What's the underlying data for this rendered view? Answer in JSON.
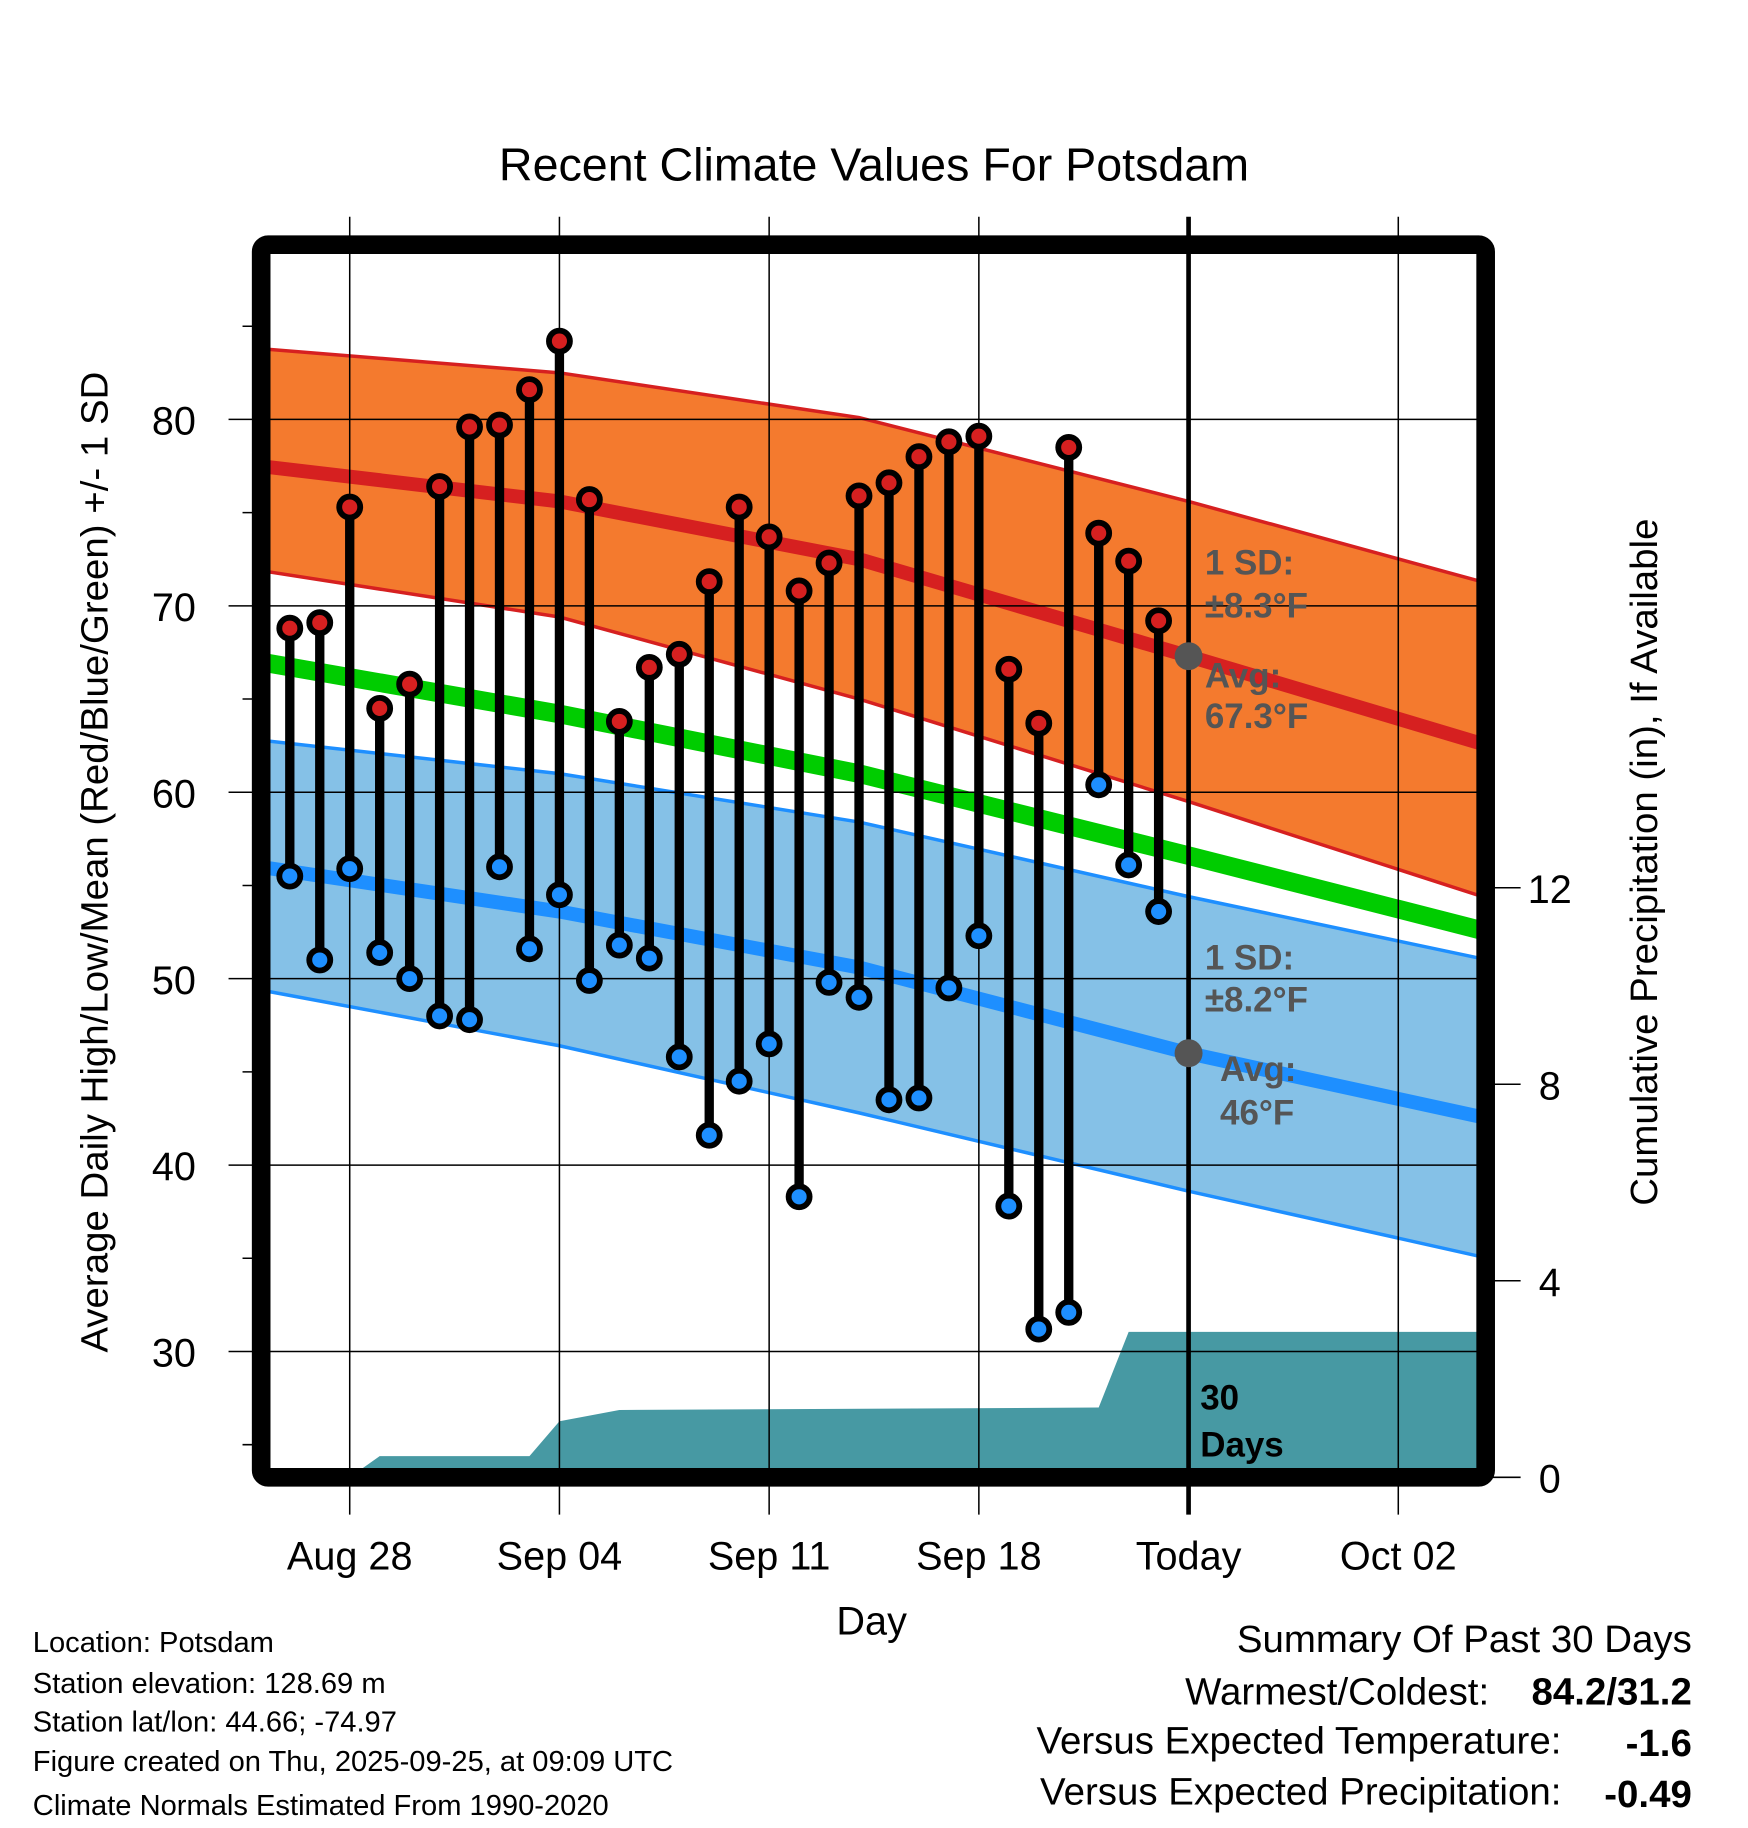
{
  "chart_data": {
    "type": "line",
    "title": "Recent Climate Values For Potsdam",
    "xlabel": "Day",
    "ylabel": "Average Daily High/Low/Mean (Red/Blue/Green) +/- 1 SD",
    "y2label": "Cumulative Precipitation (in), If Available",
    "ylim": [
      23.2,
      89.4
    ],
    "y2lim": [
      0,
      25
    ],
    "x_start": "Aug 25",
    "x_tick_days": [
      3,
      10,
      17,
      24,
      31,
      38
    ],
    "x_tick_labels": [
      "Aug 28",
      "Sep 04",
      "Sep 11",
      "Sep 18",
      "Today",
      "Oct 02"
    ],
    "y_ticks": [
      30,
      40,
      50,
      60,
      70,
      80
    ],
    "y_tick_labels": [
      "30",
      "40",
      "50",
      "60",
      "70",
      "80"
    ],
    "y2_ticks": [
      0,
      4,
      8,
      12
    ],
    "y2_tick_labels": [
      "0",
      "4",
      "8",
      "12"
    ],
    "grid": true,
    "today_day": 31,
    "observations": {
      "dates": [
        "Aug 26",
        "Aug 27",
        "Aug 28",
        "Aug 29",
        "Aug 30",
        "Aug 31",
        "Sep 01",
        "Sep 02",
        "Sep 03",
        "Sep 04",
        "Sep 05",
        "Sep 06",
        "Sep 07",
        "Sep 08",
        "Sep 09",
        "Sep 10",
        "Sep 11",
        "Sep 12",
        "Sep 13",
        "Sep 14",
        "Sep 15",
        "Sep 16",
        "Sep 17",
        "Sep 18",
        "Sep 19",
        "Sep 20",
        "Sep 21",
        "Sep 22",
        "Sep 23",
        "Sep 24"
      ],
      "days": [
        1,
        2,
        3,
        4,
        5,
        6,
        7,
        8,
        9,
        10,
        11,
        12,
        13,
        14,
        15,
        16,
        17,
        18,
        19,
        20,
        21,
        22,
        23,
        24,
        25,
        26,
        27,
        28,
        29,
        30
      ],
      "high": [
        68.8,
        69.1,
        75.3,
        64.5,
        65.8,
        76.4,
        79.6,
        79.7,
        81.6,
        84.2,
        75.7,
        63.8,
        66.7,
        67.4,
        71.3,
        75.3,
        73.7,
        70.8,
        72.3,
        75.9,
        76.6,
        78.0,
        78.8,
        79.1,
        66.6,
        63.7,
        78.5,
        73.9,
        72.4,
        69.2
      ],
      "low": [
        55.5,
        51.0,
        55.9,
        51.4,
        50.0,
        48.0,
        47.8,
        56.0,
        51.6,
        54.5,
        49.9,
        51.8,
        51.1,
        45.8,
        41.6,
        44.5,
        46.5,
        38.3,
        49.8,
        49.0,
        43.5,
        43.6,
        49.5,
        52.3,
        37.8,
        31.2,
        32.1,
        60.4,
        56.1,
        53.6
      ]
    },
    "normals": {
      "days": [
        0,
        10,
        20,
        31,
        41
      ],
      "high_upper": [
        83.8,
        82.5,
        80.1,
        75.6,
        71.2
      ],
      "high_avg": [
        77.5,
        75.6,
        72.5,
        67.3,
        62.5
      ],
      "high_lower": [
        71.9,
        69.4,
        65.0,
        59.5,
        54.3
      ],
      "mean": [
        67.0,
        64.2,
        61.0,
        56.6,
        52.5
      ],
      "low_upper": [
        62.8,
        61.0,
        58.4,
        54.4,
        51.0
      ],
      "low_avg": [
        56.0,
        53.6,
        50.6,
        46.0,
        42.5
      ],
      "low_lower": [
        49.4,
        46.4,
        42.8,
        38.6,
        35.0
      ]
    },
    "precipitation": {
      "days": [
        3,
        4,
        9,
        10,
        12,
        28,
        29,
        41
      ],
      "cumulative_in": [
        0,
        0.43,
        0.43,
        1.14,
        1.37,
        1.42,
        2.96,
        2.96
      ]
    },
    "annotations": {
      "high_sd_label": "1 SD:",
      "high_sd_value": "±8.3°F",
      "high_avg_label": "Avg:",
      "high_avg_value": "67.3°F",
      "low_sd_label": "1 SD:",
      "low_sd_value": "±8.2°F",
      "low_avg_label": "Avg:",
      "low_avg_value": "46°F",
      "precip_period_num": "30",
      "precip_period_unit": "Days"
    },
    "colors": {
      "high_band": "#f47a2e",
      "high_line": "#d62020",
      "mean_line": "#00cc00",
      "low_band": "#85c1e7",
      "low_line": "#1e8fff",
      "precip": "#4799a3",
      "annotation": "#555555"
    }
  },
  "footer": {
    "location": "Location: Potsdam",
    "elevation": "Station elevation: 128.69 m",
    "latlon": "Station lat/lon: 44.66; -74.97",
    "created": "Figure created on Thu, 2025-09-25, at 09:09 UTC",
    "normals": "Climate Normals Estimated From 1990-2020"
  },
  "summary": {
    "title": "Summary Of Past 30 Days",
    "warmest_label": "Warmest/Coldest:",
    "warmest_value": "84.2/31.2",
    "temp_label": "Versus Expected Temperature:",
    "temp_value": "-1.6",
    "precip_label": "Versus Expected Precipitation:",
    "precip_value": "-0.49",
    "temp_color": "#1e8fff",
    "precip_color": "#a0522d"
  }
}
